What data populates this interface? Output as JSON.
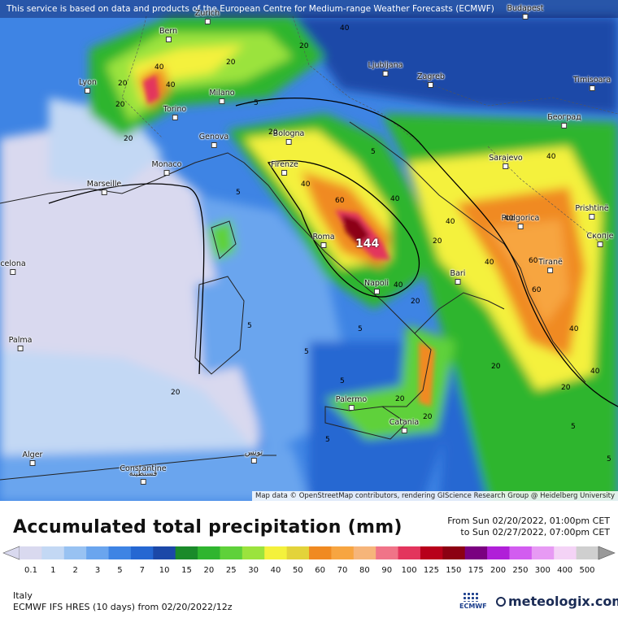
{
  "map": {
    "notice": "This service is based on data and products of the European Centre for Medium-range Weather Forecasts (ECMWF)",
    "attribution": "Map data © OpenStreetMap contributors, rendering GIScience Research Group @ Heidelberg University",
    "peak_label": "144",
    "cities": [
      {
        "name": "Zurich"
      },
      {
        "name": "Bern"
      },
      {
        "name": "Lyon"
      },
      {
        "name": "Milano"
      },
      {
        "name": "Torino"
      },
      {
        "name": "Genova"
      },
      {
        "name": "Monaco"
      },
      {
        "name": "Marseille"
      },
      {
        "name": "Bologna"
      },
      {
        "name": "Firenze"
      },
      {
        "name": "Roma"
      },
      {
        "name": "Napoli"
      },
      {
        "name": "Bari"
      },
      {
        "name": "Palermo"
      },
      {
        "name": "Catania"
      },
      {
        "name": "Ljubljana"
      },
      {
        "name": "Zagreb"
      },
      {
        "name": "Budapest"
      },
      {
        "name": "Timisoara"
      },
      {
        "name": "Београд"
      },
      {
        "name": "Sarajevo"
      },
      {
        "name": "Podgorica"
      },
      {
        "name": "Prishtinë"
      },
      {
        "name": "Скопје"
      },
      {
        "name": "Tiranë"
      },
      {
        "name": "Palma"
      },
      {
        "name": "Alger"
      },
      {
        "name": "Constantine"
      },
      {
        "name": "قسنطينة"
      },
      {
        "name": "تونس"
      },
      {
        "name": "celona"
      }
    ],
    "contour_labels": [
      "40",
      "20",
      "40",
      "20",
      "20",
      "5",
      "20",
      "40",
      "20",
      "5",
      "40",
      "60",
      "40",
      "40",
      "20",
      "5",
      "40",
      "60",
      "40",
      "20",
      "5",
      "5",
      "5",
      "20",
      "40",
      "60",
      "40",
      "20",
      "5",
      "5",
      "20",
      "40",
      "20",
      "5",
      "5",
      "20",
      "40",
      "20"
    ]
  },
  "legend": {
    "title": "Accumulated total precipitation (mm)",
    "period_from": "From Sun 02/20/2022, 01:00pm CET",
    "period_to": "to Sun 02/27/2022, 07:00pm CET",
    "ticks": [
      "0.1",
      "1",
      "2",
      "3",
      "5",
      "7",
      "10",
      "15",
      "20",
      "25",
      "30",
      "40",
      "50",
      "60",
      "70",
      "80",
      "90",
      "100",
      "125",
      "150",
      "175",
      "200",
      "250",
      "300",
      "400",
      "500"
    ],
    "colors": [
      "#d9d9ef",
      "#c3d8f4",
      "#98c2f2",
      "#6aa5ee",
      "#3e84e4",
      "#2567d2",
      "#1b48a8",
      "#1a8a2a",
      "#2fb52f",
      "#5fd13a",
      "#9be33d",
      "#f4f13c",
      "#e3d33a",
      "#f08a21",
      "#f7a541",
      "#f6b57a",
      "#f07488",
      "#e3355d",
      "#b8001a",
      "#8c0012",
      "#7a0080",
      "#b01fd8",
      "#d25cf0",
      "#e79af4",
      "#f4d3f6",
      "#cfcfcf"
    ]
  },
  "region": "Italy",
  "model": "ECMWF IFS HRES (10 days) from 02/20/2022/12z",
  "logos": {
    "ecmwf": "ECMWF",
    "meteologix": "meteologix.com"
  }
}
